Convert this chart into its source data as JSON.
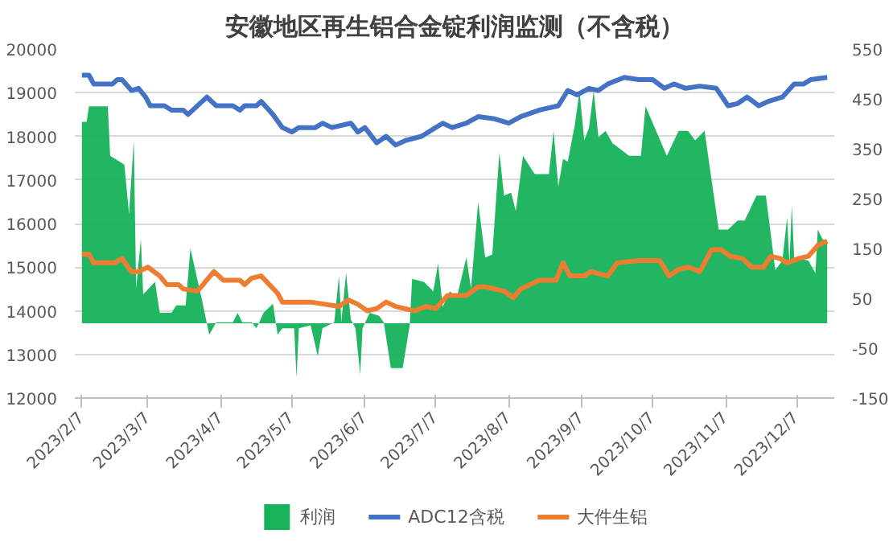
{
  "chart_data": {
    "type": "line",
    "title": "安徽地区再生铝合金锭利润监测（不含税）",
    "xlim": [
      "2023-02-04",
      "2023-12-23"
    ],
    "xticks": [
      {
        "value": "2023-02-07",
        "label": "2023/2/7"
      },
      {
        "value": "2023-03-07",
        "label": "2023/3/7"
      },
      {
        "value": "2023-04-07",
        "label": "2023/4/7"
      },
      {
        "value": "2023-05-07",
        "label": "2023/5/7"
      },
      {
        "value": "2023-06-07",
        "label": "2023/6/7"
      },
      {
        "value": "2023-07-07",
        "label": "2023/7/7"
      },
      {
        "value": "2023-08-07",
        "label": "2023/8/7"
      },
      {
        "value": "2023-09-07",
        "label": "2023/9/7"
      },
      {
        "value": "2023-10-07",
        "label": "2023/10/7"
      },
      {
        "value": "2023-11-07",
        "label": "2023/11/7"
      },
      {
        "value": "2023-12-07",
        "label": "2023/12/7"
      }
    ],
    "ylim": [
      12000,
      20000
    ],
    "yticks": [
      12000,
      13000,
      14000,
      15000,
      16000,
      17000,
      18000,
      19000,
      20000
    ],
    "y2lim": [
      -150,
      550
    ],
    "y2ticks": [
      -150,
      -50,
      50,
      150,
      250,
      350,
      450,
      550
    ],
    "grid": "y",
    "legend": "bottom",
    "series": [
      {
        "name": "利润",
        "type": "area",
        "axis": "y2",
        "color": "#17b25a",
        "x": [
          "2023-02-07",
          "2023-02-09",
          "2023-02-10",
          "2023-02-18",
          "2023-02-19",
          "2023-02-23",
          "2023-02-25",
          "2023-02-27",
          "2023-03-01",
          "2023-03-02",
          "2023-03-04",
          "2023-03-05",
          "2023-03-10",
          "2023-03-12",
          "2023-03-17",
          "2023-03-19",
          "2023-03-23",
          "2023-03-25",
          "2023-03-30",
          "2023-04-02",
          "2023-04-05",
          "2023-04-12",
          "2023-04-14",
          "2023-04-16",
          "2023-04-20",
          "2023-04-22",
          "2023-04-25",
          "2023-04-29",
          "2023-05-01",
          "2023-05-03",
          "2023-05-08",
          "2023-05-09",
          "2023-05-10",
          "2023-05-15",
          "2023-05-18",
          "2023-05-20",
          "2023-05-25",
          "2023-05-27",
          "2023-05-28",
          "2023-05-30",
          "2023-06-01",
          "2023-06-03",
          "2023-06-05",
          "2023-06-06",
          "2023-06-09",
          "2023-06-13",
          "2023-06-15",
          "2023-06-18",
          "2023-06-23",
          "2023-06-26",
          "2023-06-27",
          "2023-07-02",
          "2023-07-06",
          "2023-07-08",
          "2023-07-10",
          "2023-07-13",
          "2023-07-16",
          "2023-07-20",
          "2023-07-22",
          "2023-07-25",
          "2023-07-28",
          "2023-07-31",
          "2023-08-03",
          "2023-08-05",
          "2023-08-08",
          "2023-08-10",
          "2023-08-13",
          "2023-08-18",
          "2023-08-24",
          "2023-08-26",
          "2023-08-28",
          "2023-08-30",
          "2023-09-01",
          "2023-09-04",
          "2023-09-06",
          "2023-09-08",
          "2023-09-10",
          "2023-09-12",
          "2023-09-14",
          "2023-09-17",
          "2023-09-20",
          "2023-09-27",
          "2023-10-02",
          "2023-10-04",
          "2023-10-13",
          "2023-10-18",
          "2023-10-22",
          "2023-10-25",
          "2023-10-29",
          "2023-11-04",
          "2023-11-08",
          "2023-11-12",
          "2023-11-15",
          "2023-11-20",
          "2023-11-24",
          "2023-11-28",
          "2023-12-01",
          "2023-12-03",
          "2023-12-04",
          "2023-12-05",
          "2023-12-06",
          "2023-12-12",
          "2023-12-15",
          "2023-12-16",
          "2023-12-18",
          "2023-12-20"
        ],
        "values": [
          404,
          404,
          435,
          435,
          336,
          324,
          318,
          219,
          367,
          70,
          169,
          58,
          83,
          21,
          21,
          36,
          36,
          150,
          45,
          -23,
          2,
          2,
          21,
          2,
          2,
          -10,
          21,
          39,
          -23,
          -10,
          -10,
          -109,
          -10,
          -4,
          -66,
          -10,
          2,
          95,
          2,
          101,
          8,
          -10,
          -103,
          -10,
          21,
          15,
          2,
          -90,
          -90,
          -4,
          89,
          83,
          64,
          120,
          33,
          64,
          52,
          132,
          70,
          243,
          132,
          138,
          342,
          256,
          262,
          225,
          336,
          299,
          299,
          386,
          274,
          330,
          324,
          398,
          466,
          367,
          392,
          466,
          373,
          386,
          361,
          336,
          336,
          435,
          336,
          386,
          386,
          367,
          386,
          188,
          188,
          206,
          206,
          256,
          256,
          107,
          126,
          212,
          120,
          237,
          132,
          126,
          101,
          188,
          169,
          163
        ]
      },
      {
        "name": "ADC12含税",
        "type": "line",
        "color": "#4472c4",
        "x": [
          "2023-02-07",
          "2023-02-10",
          "2023-02-12",
          "2023-02-20",
          "2023-02-22",
          "2023-02-24",
          "2023-02-28",
          "2023-03-03",
          "2023-03-06",
          "2023-03-08",
          "2023-03-14",
          "2023-03-17",
          "2023-03-22",
          "2023-03-24",
          "2023-04-01",
          "2023-04-05",
          "2023-04-12",
          "2023-04-15",
          "2023-04-17",
          "2023-04-22",
          "2023-04-24",
          "2023-04-29",
          "2023-05-03",
          "2023-05-07",
          "2023-05-10",
          "2023-05-17",
          "2023-05-20",
          "2023-05-24",
          "2023-06-01",
          "2023-06-04",
          "2023-06-07",
          "2023-06-12",
          "2023-06-16",
          "2023-06-20",
          "2023-06-24",
          "2023-07-01",
          "2023-07-10",
          "2023-07-14",
          "2023-07-20",
          "2023-07-25",
          "2023-08-01",
          "2023-08-07",
          "2023-08-12",
          "2023-08-20",
          "2023-08-28",
          "2023-09-01",
          "2023-09-05",
          "2023-09-10",
          "2023-09-14",
          "2023-09-18",
          "2023-09-25",
          "2023-10-01",
          "2023-10-07",
          "2023-10-12",
          "2023-10-16",
          "2023-10-21",
          "2023-10-27",
          "2023-11-03",
          "2023-11-08",
          "2023-11-12",
          "2023-11-16",
          "2023-11-21",
          "2023-11-25",
          "2023-12-01",
          "2023-12-06",
          "2023-12-10",
          "2023-12-13",
          "2023-12-20"
        ],
        "values": [
          19400,
          19400,
          19200,
          19200,
          19300,
          19300,
          19050,
          19100,
          18900,
          18700,
          18700,
          18600,
          18600,
          18500,
          18900,
          18700,
          18700,
          18600,
          18700,
          18700,
          18800,
          18500,
          18200,
          18100,
          18200,
          18200,
          18300,
          18200,
          18300,
          18100,
          18200,
          17850,
          18000,
          17800,
          17900,
          18000,
          18300,
          18200,
          18300,
          18450,
          18400,
          18300,
          18450,
          18600,
          18700,
          19050,
          18950,
          19100,
          19050,
          19200,
          19350,
          19300,
          19300,
          19100,
          19200,
          19100,
          19150,
          19100,
          18700,
          18750,
          18900,
          18700,
          18800,
          18900,
          19200,
          19200,
          19300,
          19350
        ]
      },
      {
        "name": "大件生铝",
        "type": "line",
        "color": "#ed7d31",
        "x": [
          "2023-02-07",
          "2023-02-10",
          "2023-02-12",
          "2023-02-21",
          "2023-02-24",
          "2023-02-28",
          "2023-03-03",
          "2023-03-07",
          "2023-03-12",
          "2023-03-15",
          "2023-03-20",
          "2023-03-22",
          "2023-03-28",
          "2023-04-04",
          "2023-04-08",
          "2023-04-15",
          "2023-04-17",
          "2023-04-20",
          "2023-04-24",
          "2023-05-01",
          "2023-05-03",
          "2023-05-15",
          "2023-05-21",
          "2023-05-27",
          "2023-05-31",
          "2023-06-04",
          "2023-06-08",
          "2023-06-12",
          "2023-06-16",
          "2023-06-20",
          "2023-06-28",
          "2023-07-03",
          "2023-07-07",
          "2023-07-12",
          "2023-07-20",
          "2023-07-25",
          "2023-07-28",
          "2023-08-05",
          "2023-08-09",
          "2023-08-12",
          "2023-08-20",
          "2023-08-27",
          "2023-08-30",
          "2023-09-02",
          "2023-09-08",
          "2023-09-11",
          "2023-09-14",
          "2023-09-18",
          "2023-09-22",
          "2023-10-01",
          "2023-10-10",
          "2023-10-14",
          "2023-10-18",
          "2023-10-22",
          "2023-10-27",
          "2023-11-01",
          "2023-11-05",
          "2023-11-09",
          "2023-11-14",
          "2023-11-18",
          "2023-11-23",
          "2023-11-26",
          "2023-11-30",
          "2023-12-03",
          "2023-12-08",
          "2023-12-12",
          "2023-12-16",
          "2023-12-20"
        ],
        "values": [
          15300,
          15300,
          15100,
          15100,
          15200,
          14900,
          14900,
          15000,
          14800,
          14600,
          14600,
          14500,
          14450,
          14900,
          14700,
          14700,
          14600,
          14750,
          14800,
          14400,
          14200,
          14200,
          14150,
          14100,
          14250,
          14150,
          14000,
          14050,
          14200,
          14100,
          14000,
          14100,
          14050,
          14350,
          14350,
          14550,
          14550,
          14450,
          14300,
          14500,
          14700,
          14700,
          15100,
          14800,
          14800,
          14900,
          14850,
          14800,
          15100,
          15150,
          15150,
          14800,
          14950,
          15000,
          14900,
          15400,
          15400,
          15250,
          15200,
          15000,
          15000,
          15250,
          15200,
          15100,
          15200,
          15250,
          15500,
          15600
        ]
      }
    ]
  }
}
